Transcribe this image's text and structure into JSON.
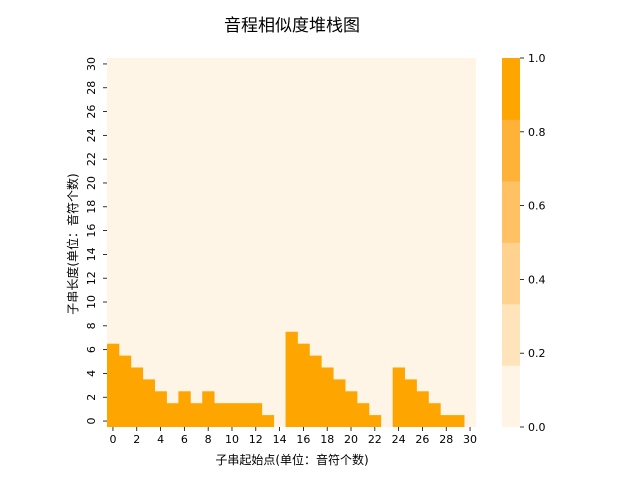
{
  "chart_data": {
    "type": "heatmap",
    "title": "音程相似度堆栈图",
    "xlabel": "子串起始点(单位：音符个数)",
    "ylabel": "子串长度(单位：音符个数)",
    "x_ticks": [
      0,
      2,
      4,
      6,
      8,
      10,
      12,
      14,
      16,
      18,
      20,
      22,
      24,
      26,
      28,
      30
    ],
    "y_ticks": [
      0,
      2,
      4,
      6,
      8,
      10,
      12,
      14,
      16,
      18,
      20,
      22,
      24,
      26,
      28,
      30
    ],
    "x_range": [
      0,
      31
    ],
    "y_range": [
      0,
      31
    ],
    "background_value": 0.0,
    "column_heights": [
      7,
      6,
      5,
      4,
      3,
      2,
      3,
      2,
      3,
      2,
      2,
      2,
      2,
      1,
      0,
      8,
      7,
      6,
      5,
      4,
      3,
      2,
      1,
      0,
      5,
      4,
      3,
      2,
      1,
      1,
      0
    ],
    "filled_value": 1.0,
    "colorbar": {
      "min": 0.0,
      "max": 1.0,
      "ticks": [
        "0.0",
        "0.2",
        "0.4",
        "0.6",
        "0.8",
        "1.0"
      ],
      "colors": [
        "#fff5e6",
        "#ffe4bb",
        "#ffd28f",
        "#ffc163",
        "#ffb237",
        "#ffa500"
      ]
    },
    "colors": {
      "low": "#fff5e6",
      "high": "#ffa500"
    }
  }
}
